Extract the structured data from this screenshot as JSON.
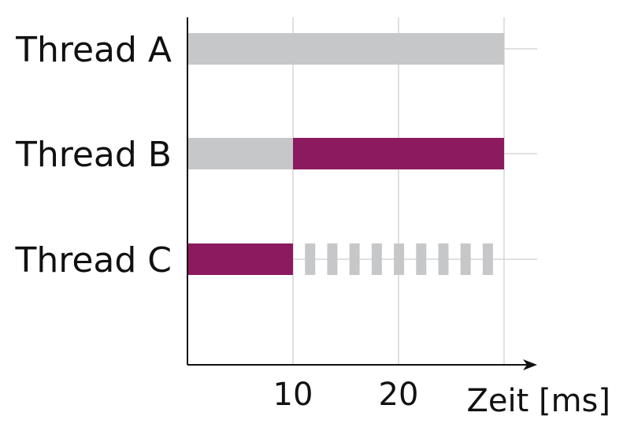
{
  "chart_data": {
    "type": "bar",
    "subtype": "gantt",
    "xlabel": "Zeit [ms]",
    "xlim": [
      0,
      30
    ],
    "x_ticks": [
      10,
      20
    ],
    "grid": true,
    "colors": {
      "idle": "#c6c7c9",
      "active": "#8b1a5f",
      "axis": "#111111",
      "grid": "#d6d6d6"
    },
    "categories": [
      "Thread A",
      "Thread B",
      "Thread C"
    ],
    "segments": [
      {
        "row": "Thread A",
        "start": 0,
        "end": 30,
        "state": "idle",
        "pattern": "solid"
      },
      {
        "row": "Thread B",
        "start": 0,
        "end": 10,
        "state": "idle",
        "pattern": "solid"
      },
      {
        "row": "Thread B",
        "start": 10,
        "end": 30,
        "state": "active",
        "pattern": "solid"
      },
      {
        "row": "Thread C",
        "start": 0,
        "end": 10,
        "state": "active",
        "pattern": "solid"
      },
      {
        "row": "Thread C",
        "start": 10,
        "end": 30,
        "state": "idle",
        "pattern": "dashed"
      }
    ]
  }
}
